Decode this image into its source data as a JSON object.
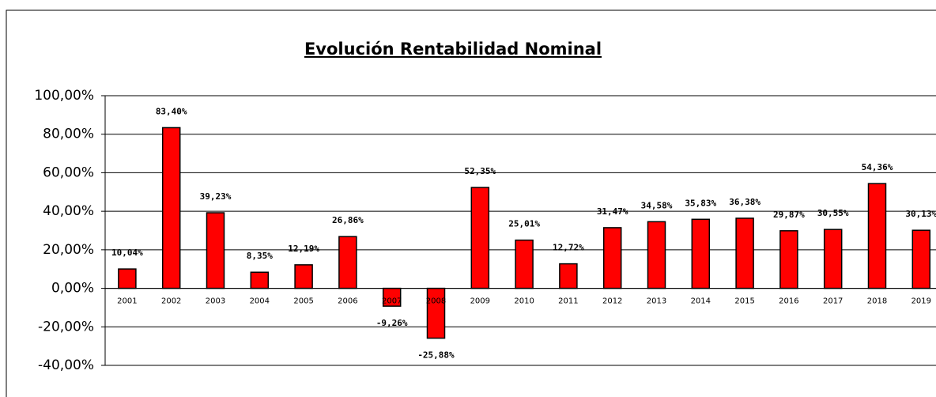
{
  "chart_data": {
    "type": "bar",
    "title": "Evolución Rentabilidad Nominal",
    "categories": [
      "2001",
      "2002",
      "2003",
      "2004",
      "2005",
      "2006",
      "2007",
      "2008",
      "2009",
      "2010",
      "2011",
      "2012",
      "2013",
      "2014",
      "2015",
      "2016",
      "2017",
      "2018",
      "2019"
    ],
    "values": [
      10.04,
      83.4,
      39.23,
      8.35,
      12.19,
      26.86,
      -9.26,
      -25.88,
      52.35,
      25.01,
      12.72,
      31.47,
      34.58,
      35.83,
      36.38,
      29.87,
      30.55,
      54.36,
      30.13
    ],
    "value_labels": [
      "10,04%",
      "83,40%",
      "39,23%",
      "8,35%",
      "12,19%",
      "26,86%",
      "-9,26%",
      "-25,88%",
      "52,35%",
      "25,01%",
      "12,72%",
      "31,47%",
      "34,58%",
      "35,83%",
      "36,38%",
      "29,87%",
      "30,55%",
      "54,36%",
      "30,13%"
    ],
    "color": "#ff0000",
    "ylim": [
      -40,
      100
    ],
    "yticks": [
      {
        "value": -40,
        "label": "-40,00%"
      },
      {
        "value": -20,
        "label": "-20,00%"
      },
      {
        "value": 0,
        "label": "0,00%"
      },
      {
        "value": 20,
        "label": "20,00%"
      },
      {
        "value": 40,
        "label": "40,00%"
      },
      {
        "value": 60,
        "label": "60,00%"
      },
      {
        "value": 80,
        "label": "80,00%"
      },
      {
        "value": 100,
        "label": "100,00%"
      }
    ],
    "grid": true
  }
}
